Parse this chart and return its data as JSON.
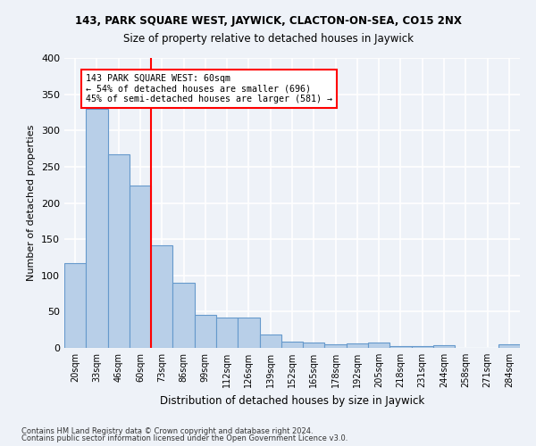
{
  "title": "143, PARK SQUARE WEST, JAYWICK, CLACTON-ON-SEA, CO15 2NX",
  "subtitle": "Size of property relative to detached houses in Jaywick",
  "xlabel": "Distribution of detached houses by size in Jaywick",
  "ylabel": "Number of detached properties",
  "categories": [
    "20sqm",
    "33sqm",
    "46sqm",
    "60sqm",
    "73sqm",
    "86sqm",
    "99sqm",
    "112sqm",
    "126sqm",
    "139sqm",
    "152sqm",
    "165sqm",
    "178sqm",
    "192sqm",
    "205sqm",
    "218sqm",
    "231sqm",
    "244sqm",
    "258sqm",
    "271sqm",
    "284sqm"
  ],
  "values": [
    117,
    330,
    267,
    224,
    142,
    90,
    46,
    42,
    42,
    18,
    9,
    7,
    5,
    6,
    7,
    3,
    3,
    4,
    0,
    0,
    5
  ],
  "bar_color": "#b8cfe8",
  "bar_edge_color": "#6699cc",
  "red_line_x": 3.5,
  "annotation_text": "143 PARK SQUARE WEST: 60sqm\n← 54% of detached houses are smaller (696)\n45% of semi-detached houses are larger (581) →",
  "annotation_box_color": "white",
  "annotation_box_edge": "red",
  "ylim": [
    0,
    400
  ],
  "yticks": [
    0,
    50,
    100,
    150,
    200,
    250,
    300,
    350,
    400
  ],
  "footnote1": "Contains HM Land Registry data © Crown copyright and database right 2024.",
  "footnote2": "Contains public sector information licensed under the Open Government Licence v3.0.",
  "background_color": "#eef2f8",
  "grid_color": "white"
}
